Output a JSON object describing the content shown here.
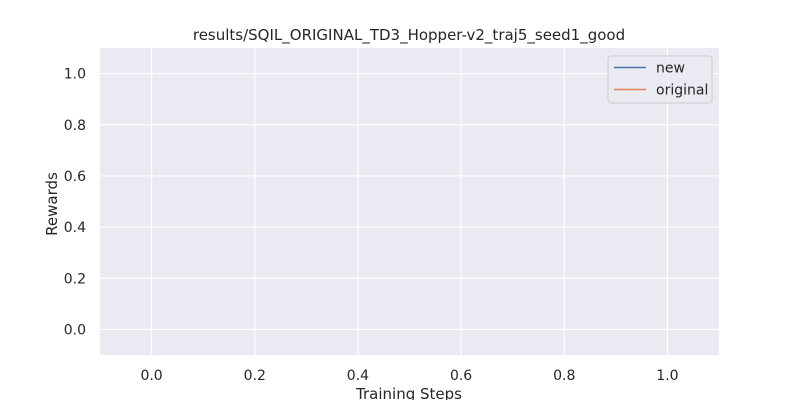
{
  "chart_data": {
    "type": "line",
    "title": "results/SQIL_ORIGINAL_TD3_Hopper-v2_traj5_seed1_good",
    "xlabel": "Training Steps",
    "ylabel": "Rewards",
    "xlim": [
      -0.1,
      1.1
    ],
    "ylim": [
      -0.1,
      1.1
    ],
    "xticks": [
      "0.0",
      "0.2",
      "0.4",
      "0.6",
      "0.8",
      "1.0"
    ],
    "yticks": [
      "0.0",
      "0.2",
      "0.4",
      "0.6",
      "0.8",
      "1.0"
    ],
    "xtick_values": [
      0.0,
      0.2,
      0.4,
      0.6,
      0.8,
      1.0
    ],
    "ytick_values": [
      0.0,
      0.2,
      0.4,
      0.6,
      0.8,
      1.0
    ],
    "grid": true,
    "legend_position": "top-right",
    "series": [
      {
        "name": "new",
        "color": "#4c72b0",
        "x": [],
        "y": []
      },
      {
        "name": "original",
        "color": "#dd8452",
        "x": [],
        "y": []
      }
    ],
    "colors": {
      "plot_background": "#eaeaf2",
      "grid": "#ffffff"
    }
  }
}
